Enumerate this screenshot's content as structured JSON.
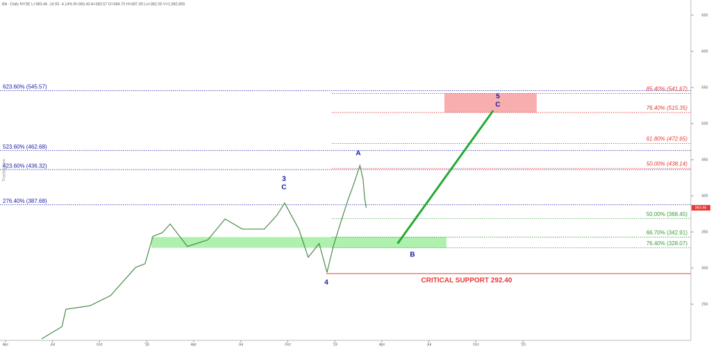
{
  "chart_data": {
    "type": "line",
    "title": "BA · Daily NYSE  L=383.46 -16.55 -4.14%  B=383.40 A=383.57 O=384.70 H=387.00 Lo=382.00 V=1,982,855",
    "watermark": "TradingView",
    "last_price": {
      "value": 383.46,
      "label": "383.46",
      "color": "#e53935"
    },
    "xlim": [
      -0.35,
      43.7
    ],
    "xticks": [
      {
        "value": 0,
        "label": "Apr"
      },
      {
        "value": 3,
        "label": "Jul"
      },
      {
        "value": 6,
        "label": "Oct"
      },
      {
        "value": 9,
        "label": "'18"
      },
      {
        "value": 12,
        "label": "Apr"
      },
      {
        "value": 15,
        "label": "Jul"
      },
      {
        "value": 18,
        "label": "Oct"
      },
      {
        "value": 21,
        "label": "'19"
      },
      {
        "value": 24,
        "label": "Apr"
      },
      {
        "value": 27,
        "label": "Jul"
      },
      {
        "value": 30,
        "label": "Oct"
      },
      {
        "value": 33,
        "label": "'20"
      }
    ],
    "ylim": [
      200,
      671
    ],
    "yticks": [
      250,
      300,
      350,
      400,
      450,
      500,
      550,
      600,
      650
    ],
    "x": [
      2.3,
      3.6,
      3.85,
      5.4,
      6.7,
      8.3,
      8.9,
      9.4,
      10.0,
      10.5,
      11.6,
      12.9,
      14.0,
      15.1,
      16.5,
      17.3,
      17.8,
      18.7,
      19.3,
      20.0,
      20.5,
      20.9,
      21.4,
      21.8,
      22.2,
      22.6,
      22.8,
      22.9,
      23.0
    ],
    "series": [
      {
        "color": "#4a8a4a",
        "values": [
          202,
          219,
          243,
          248,
          262,
          301,
          306,
          344,
          349,
          361,
          330,
          339,
          368,
          354,
          354,
          373,
          390,
          354,
          315,
          334,
          294,
          330,
          365,
          392,
          416,
          442,
          423,
          397,
          383.46
        ]
      }
    ],
    "levels": [
      {
        "label": "623.60% (545.57)",
        "value": 545.57,
        "side": "left",
        "color": "#1a1aa6"
      },
      {
        "label": "523.60% (462.68)",
        "value": 462.68,
        "side": "left",
        "color": "#1a1aa6"
      },
      {
        "label": "423.60% (436.32)",
        "value": 436.32,
        "side": "left",
        "color": "#1a1aa6"
      },
      {
        "label": "276.40% (387.68)",
        "value": 387.68,
        "side": "left",
        "color": "#1a1aa6"
      },
      {
        "label": "85.40% (541.67)",
        "value": 541.67,
        "side": "right",
        "color": "#e53935"
      },
      {
        "label": "76.40% (515.35)",
        "value": 515.35,
        "side": "right",
        "color": "#e53935"
      },
      {
        "label": "61.80% (472.65)",
        "value": 472.65,
        "side": "right",
        "color": "#e53935"
      },
      {
        "label": "50.00% (438.14)",
        "value": 438.14,
        "side": "right",
        "color": "#e53935"
      },
      {
        "label": "50.00% (368.45)",
        "value": 368.45,
        "side": "right",
        "color": "#3a9a3a"
      },
      {
        "label": "66.70% (342.91)",
        "value": 342.91,
        "side": "right",
        "color": "#3a9a3a"
      },
      {
        "label": "76.40% (328.07)",
        "value": 328.07,
        "side": "right",
        "color": "#3a9a3a"
      }
    ],
    "support": {
      "label": "CRITICAL SUPPORT 292.40",
      "value": 292.4,
      "color": "#e53935"
    },
    "projection": {
      "x": [
        25.0,
        31.1
      ],
      "values": [
        334,
        518
      ],
      "color": "#22aa33"
    },
    "waves": [
      "3",
      "C",
      "A",
      "B",
      "4",
      "5",
      "C"
    ]
  }
}
